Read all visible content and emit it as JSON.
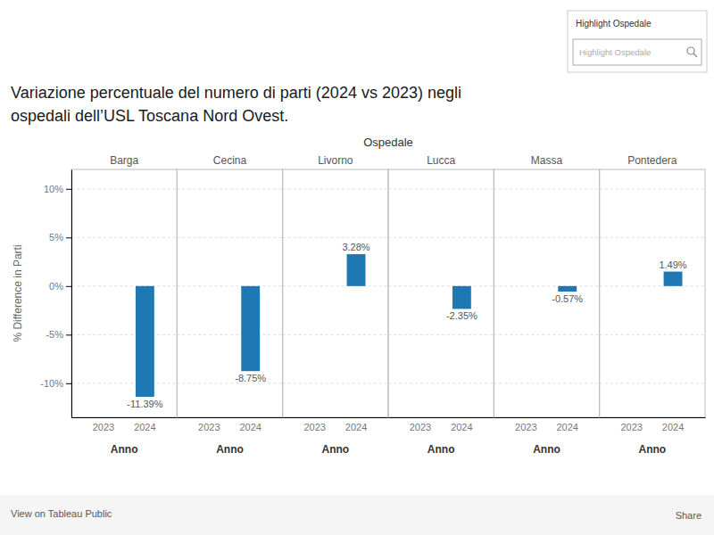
{
  "chart_data": {
    "type": "bar",
    "title": [
      "Variazione percentuale del numero di parti (2024 vs 2023) negli",
      "ospedali dell’USL Toscana Nord Ovest."
    ],
    "group_label": "Ospedale",
    "xlabel": "Anno",
    "ylabel": "% Difference in Parti",
    "categories": [
      "2023",
      "2024"
    ],
    "panels": [
      {
        "name": "Barga",
        "values": [
          0.0,
          -11.39
        ],
        "value_labels": [
          null,
          "-11.39%"
        ]
      },
      {
        "name": "Cecina",
        "values": [
          0.0,
          -8.75
        ],
        "value_labels": [
          null,
          "-8.75%"
        ]
      },
      {
        "name": "Livorno",
        "values": [
          0.0,
          3.28
        ],
        "value_labels": [
          null,
          "3.28%"
        ]
      },
      {
        "name": "Lucca",
        "values": [
          0.0,
          -2.35
        ],
        "value_labels": [
          null,
          "-2.35%"
        ]
      },
      {
        "name": "Massa",
        "values": [
          0.0,
          -0.57
        ],
        "value_labels": [
          null,
          "-0.57%"
        ]
      },
      {
        "name": "Pontedera",
        "values": [
          0.0,
          1.49
        ],
        "value_labels": [
          null,
          "1.49%"
        ]
      }
    ],
    "ylim": [
      -13.5,
      12
    ],
    "yticks": [
      {
        "value": -10,
        "label": "-10%"
      },
      {
        "value": -5,
        "label": "-5%"
      },
      {
        "value": 0,
        "label": "0%"
      },
      {
        "value": 5,
        "label": "5%"
      },
      {
        "value": 10,
        "label": "10%"
      }
    ],
    "grid": true,
    "data_labels": true,
    "annotations": [
      "Highlight Ospedale",
      "Highlight Ospedale",
      "View on Tableau Public",
      "Share"
    ]
  }
}
